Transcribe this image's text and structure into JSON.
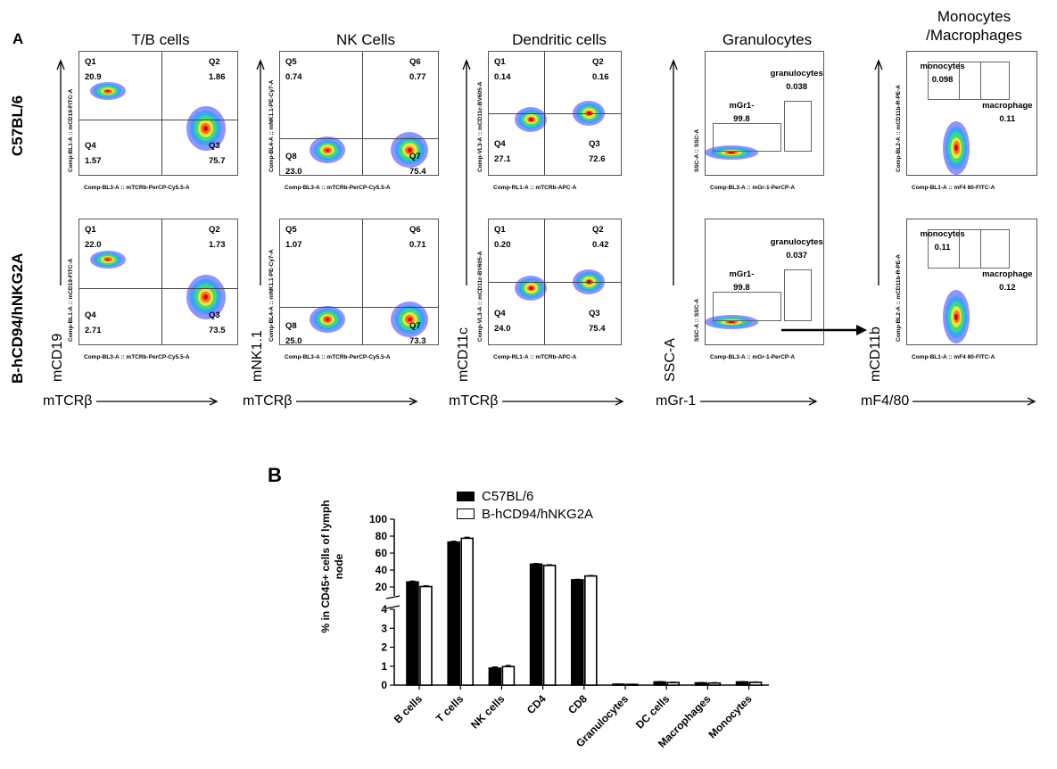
{
  "panel_a": {
    "letter": "A",
    "row_labels": [
      "C57BL/6",
      "B-hCD94/hNKG2A"
    ],
    "columns": [
      {
        "title": "T/B cells",
        "y_marker": "mCD19",
        "x_marker": "mTCRβ",
        "x_channel": "Comp-BL3-A :: mTCRb-PerCP-Cy5.5-A",
        "y_channel": "Comp-BL1-A :: mCD19-FITC-A",
        "rows": [
          {
            "quadrants": [
              {
                "name": "Q1",
                "value": "20.9"
              },
              {
                "name": "Q2",
                "value": "1.86"
              },
              {
                "name": "Q4",
                "value": "1.57"
              },
              {
                "name": "Q3",
                "value": "75.7"
              }
            ]
          },
          {
            "quadrants": [
              {
                "name": "Q1",
                "value": "22.0"
              },
              {
                "name": "Q2",
                "value": "1.73"
              },
              {
                "name": "Q4",
                "value": "2.71"
              },
              {
                "name": "Q3",
                "value": "73.5"
              }
            ]
          }
        ]
      },
      {
        "title": "NK Cells",
        "y_marker": "mNK1.1",
        "x_marker": "mTCRβ",
        "x_channel": "Comp-BL3-A :: mTCRb-PerCP-Cy5.5-A",
        "y_channel": "Comp-BL4-A :: mNK1.1-PE-Cy7-A",
        "rows": [
          {
            "quadrants": [
              {
                "name": "Q5",
                "value": "0.74"
              },
              {
                "name": "Q6",
                "value": "0.77"
              },
              {
                "name": "Q8",
                "value": "23.0"
              },
              {
                "name": "Q7",
                "value": "75.4"
              }
            ]
          },
          {
            "quadrants": [
              {
                "name": "Q5",
                "value": "1.07"
              },
              {
                "name": "Q6",
                "value": "0.71"
              },
              {
                "name": "Q8",
                "value": "25.0"
              },
              {
                "name": "Q7",
                "value": "73.3"
              }
            ]
          }
        ]
      },
      {
        "title": "Dendritic cells",
        "y_marker": "mCD11c",
        "x_marker": "mTCRβ",
        "x_channel": "Comp-RL1-A :: mTCRb-APC-A",
        "y_channel": "Comp-VL3-A :: mCD11c-BV605-A",
        "rows": [
          {
            "quadrants": [
              {
                "name": "Q1",
                "value": "0.14"
              },
              {
                "name": "Q2",
                "value": "0.16"
              },
              {
                "name": "Q4",
                "value": "27.1"
              },
              {
                "name": "Q3",
                "value": "72.6"
              }
            ]
          },
          {
            "quadrants": [
              {
                "name": "Q1",
                "value": "0.20"
              },
              {
                "name": "Q2",
                "value": "0.42"
              },
              {
                "name": "Q4",
                "value": "24.0"
              },
              {
                "name": "Q3",
                "value": "75.4"
              }
            ]
          }
        ]
      },
      {
        "title": "Granulocytes",
        "y_marker": "SSC-A",
        "x_marker": "mGr-1",
        "x_channel": "Comp-BL3-A :: mGr-1-PerCP-A",
        "y_channel": "SSC-A :: SSC-A",
        "rows": [
          {
            "gates": [
              {
                "name": "mGr1-",
                "value": "99.8"
              },
              {
                "name": "granulocytes",
                "value": "0.038"
              }
            ]
          },
          {
            "gates": [
              {
                "name": "mGr1-",
                "value": "99.8"
              },
              {
                "name": "granulocytes",
                "value": "0.037"
              }
            ]
          }
        ]
      },
      {
        "title": "Monocytes /Macrophages",
        "y_marker": "mCD11b",
        "x_marker": "mF4/80",
        "x_channel": "Comp-BL1-A :: mF4 80-FITC-A",
        "y_channel": "Comp-BL2-A :: mCD11b-R-PE-A",
        "rows": [
          {
            "gates": [
              {
                "name": "monocytes",
                "value": "0.098"
              },
              {
                "name": "macrophage",
                "value": "0.11"
              }
            ]
          },
          {
            "gates": [
              {
                "name": "monocytes",
                "value": "0.11"
              },
              {
                "name": "macrophage",
                "value": "0.12"
              }
            ]
          }
        ]
      }
    ]
  },
  "chart_data": {
    "type": "bar",
    "panel_letter": "B",
    "title": "",
    "ylabel": "% in CD45+ cells of lymph node",
    "xlabel": "",
    "categories": [
      "B cells",
      "T cells",
      "NK cells",
      "CD4",
      "CD8",
      "Granulocytes",
      "DC cells",
      "Macrophages",
      "Monocytes"
    ],
    "series": [
      {
        "name": "C57BL/6",
        "color": "#000000",
        "values": [
          26,
          73,
          0.9,
          47,
          28.5,
          0.05,
          0.17,
          0.12,
          0.17
        ],
        "errors": [
          1,
          1,
          0.06,
          0.8,
          0.6,
          0.01,
          0.02,
          0.02,
          0.02
        ]
      },
      {
        "name": "B-hCD94/hNKG2A",
        "color": "#ffffff",
        "values": [
          20.5,
          77.5,
          0.98,
          45.5,
          33,
          0.04,
          0.14,
          0.11,
          0.15
        ],
        "errors": [
          1,
          1.2,
          0.06,
          0.8,
          0.6,
          0.01,
          0.02,
          0.02,
          0.02
        ]
      }
    ],
    "y_axis_broken": true,
    "lower_segment": {
      "ylim": [
        0,
        4
      ],
      "ticks": [
        0,
        1,
        2,
        3,
        4
      ]
    },
    "upper_segment": {
      "ylim": [
        4,
        100
      ],
      "ticks": [
        20,
        40,
        60,
        80,
        100
      ]
    },
    "legend_position": "top-center",
    "grid": false
  }
}
